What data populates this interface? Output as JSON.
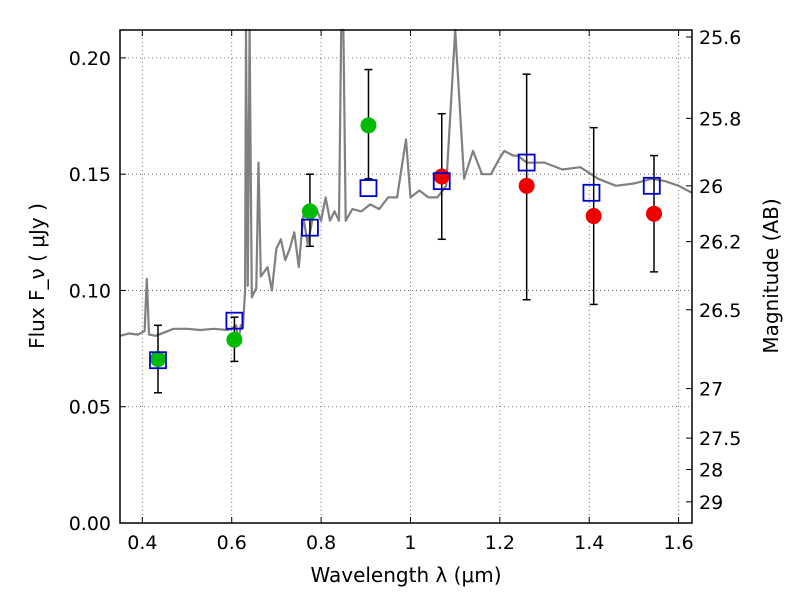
{
  "chart_data": {
    "type": "scatter",
    "title": "",
    "xlabel": "Wavelength  λ (μm)",
    "ylabel": "Flux  F_ν  ( μJy )",
    "y2label": "Magnitude (AB)",
    "xlim": [
      0.35,
      1.63
    ],
    "ylim": [
      0.0,
      0.212
    ],
    "grid": true,
    "x_ticks": [
      0.4,
      0.6,
      0.8,
      1.0,
      1.2,
      1.4,
      1.6
    ],
    "x_tick_labels": [
      "0.4",
      "0.6",
      "0.8",
      "1",
      "1.2",
      "1.4",
      "1.6"
    ],
    "y_ticks": [
      0.0,
      0.05,
      0.1,
      0.15,
      0.2
    ],
    "y_tick_labels": [
      "0.00",
      "0.05",
      "0.10",
      "0.15",
      "0.20"
    ],
    "y2_ticks": [
      {
        "label": "25.6",
        "flux": 0.209
      },
      {
        "label": "25.8",
        "flux": 0.174
      },
      {
        "label": "26",
        "flux": 0.145
      },
      {
        "label": "26.2",
        "flux": 0.121
      },
      {
        "label": "26.5",
        "flux": 0.0917
      },
      {
        "label": "27",
        "flux": 0.0578
      },
      {
        "label": "27.5",
        "flux": 0.0365
      },
      {
        "label": "28",
        "flux": 0.023
      },
      {
        "label": "29",
        "flux": 0.0091
      }
    ],
    "colors": {
      "template": "#808080",
      "green": "#00bb00",
      "red": "#ee0000",
      "model": "#0000cc",
      "errorbar": "#000000",
      "grid": "#555555"
    },
    "series": [
      {
        "marker": "green-circle",
        "points": [
          {
            "x": 0.435,
            "y": 0.0705,
            "err_lo": 0.056,
            "err_hi": 0.085
          },
          {
            "x": 0.606,
            "y": 0.0788,
            "err_lo": 0.0695,
            "err_hi": 0.0885
          },
          {
            "x": 0.775,
            "y": 0.134,
            "err_lo": 0.119,
            "err_hi": 0.15
          },
          {
            "x": 0.906,
            "y": 0.171,
            "err_lo": 0.148,
            "err_hi": 0.195
          }
        ]
      },
      {
        "marker": "red-circle",
        "points": [
          {
            "x": 1.07,
            "y": 0.149,
            "err_lo": 0.122,
            "err_hi": 0.176
          },
          {
            "x": 1.26,
            "y": 0.145,
            "err_lo": 0.096,
            "err_hi": 0.193
          },
          {
            "x": 1.41,
            "y": 0.132,
            "err_lo": 0.094,
            "err_hi": 0.17
          },
          {
            "x": 1.545,
            "y": 0.133,
            "err_lo": 0.108,
            "err_hi": 0.158
          }
        ]
      },
      {
        "marker": "blue-open-square",
        "points": [
          {
            "x": 0.435,
            "y": 0.07
          },
          {
            "x": 0.606,
            "y": 0.087
          },
          {
            "x": 0.775,
            "y": 0.127
          },
          {
            "x": 0.906,
            "y": 0.144
          },
          {
            "x": 1.07,
            "y": 0.147
          },
          {
            "x": 1.26,
            "y": 0.155
          },
          {
            "x": 1.405,
            "y": 0.142
          },
          {
            "x": 1.54,
            "y": 0.145
          }
        ]
      }
    ],
    "template_spectrum": [
      [
        0.35,
        0.0805
      ],
      [
        0.37,
        0.0815
      ],
      [
        0.39,
        0.081
      ],
      [
        0.405,
        0.0825
      ],
      [
        0.41,
        0.105
      ],
      [
        0.415,
        0.081
      ],
      [
        0.43,
        0.0805
      ],
      [
        0.45,
        0.082
      ],
      [
        0.47,
        0.0835
      ],
      [
        0.5,
        0.0835
      ],
      [
        0.53,
        0.083
      ],
      [
        0.56,
        0.0835
      ],
      [
        0.59,
        0.083
      ],
      [
        0.6,
        0.0835
      ],
      [
        0.61,
        0.085
      ],
      [
        0.615,
        0.077
      ],
      [
        0.62,
        0.085
      ],
      [
        0.625,
        0.084
      ],
      [
        0.63,
        0.1
      ],
      [
        0.632,
        0.212
      ],
      [
        0.636,
        0.102
      ],
      [
        0.64,
        0.212
      ],
      [
        0.645,
        0.097
      ],
      [
        0.655,
        0.101
      ],
      [
        0.66,
        0.155
      ],
      [
        0.665,
        0.106
      ],
      [
        0.68,
        0.11
      ],
      [
        0.69,
        0.1
      ],
      [
        0.7,
        0.118
      ],
      [
        0.71,
        0.122
      ],
      [
        0.72,
        0.113
      ],
      [
        0.73,
        0.118
      ],
      [
        0.74,
        0.125
      ],
      [
        0.75,
        0.11
      ],
      [
        0.76,
        0.132
      ],
      [
        0.77,
        0.12
      ],
      [
        0.78,
        0.13
      ],
      [
        0.79,
        0.135
      ],
      [
        0.8,
        0.13
      ],
      [
        0.81,
        0.14
      ],
      [
        0.82,
        0.13
      ],
      [
        0.83,
        0.134
      ],
      [
        0.84,
        0.13
      ],
      [
        0.845,
        0.212
      ],
      [
        0.85,
        0.212
      ],
      [
        0.855,
        0.13
      ],
      [
        0.87,
        0.135
      ],
      [
        0.89,
        0.134
      ],
      [
        0.91,
        0.137
      ],
      [
        0.93,
        0.135
      ],
      [
        0.95,
        0.14
      ],
      [
        0.97,
        0.14
      ],
      [
        0.99,
        0.165
      ],
      [
        1.0,
        0.14
      ],
      [
        1.02,
        0.143
      ],
      [
        1.04,
        0.14
      ],
      [
        1.06,
        0.14
      ],
      [
        1.08,
        0.145
      ],
      [
        1.1,
        0.212
      ],
      [
        1.12,
        0.148
      ],
      [
        1.14,
        0.16
      ],
      [
        1.16,
        0.15
      ],
      [
        1.18,
        0.15
      ],
      [
        1.2,
        0.157
      ],
      [
        1.21,
        0.16
      ],
      [
        1.23,
        0.158
      ],
      [
        1.24,
        0.158
      ],
      [
        1.26,
        0.155
      ],
      [
        1.3,
        0.155
      ],
      [
        1.34,
        0.152
      ],
      [
        1.38,
        0.153
      ],
      [
        1.42,
        0.148
      ],
      [
        1.46,
        0.145
      ],
      [
        1.5,
        0.146
      ],
      [
        1.54,
        0.148
      ],
      [
        1.57,
        0.147
      ],
      [
        1.6,
        0.145
      ],
      [
        1.63,
        0.142
      ]
    ]
  }
}
